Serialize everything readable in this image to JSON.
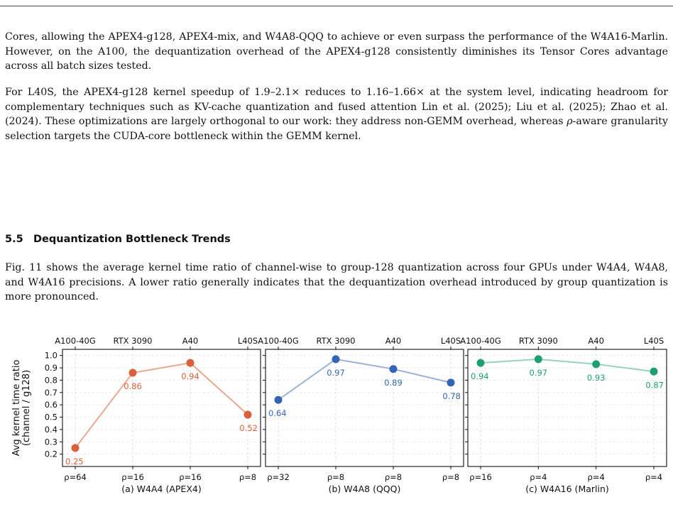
{
  "text": {
    "para1": "Cores, allowing the APEX4-g128, APEX4-mix, and W4A8-QQQ to achieve or even surpass the performance of the W4A16-Marlin. However, on the A100, the dequantization overhead of the APEX4-g128 consistently diminishes its Tensor Cores advantage across all batch sizes tested.",
    "para2_a": "For L40S, the APEX4-g128 kernel speedup of 1.9–2.1× reduces to 1.16–1.66× at the system level, indicating headroom for complementary techniques such as KV-cache quantization and fused attention Lin et al. (2025); Liu et al. (2025); Zhao et al. (2024). These optimizations are largely orthogonal to our work: they address non-GEMM overhead, whereas ",
    "para2_rho": "ρ",
    "para2_b": "-aware granularity selection targets the CUDA-core bottleneck within the GEMM kernel.",
    "section_number": "5.5",
    "section_title": "Dequantization Bottleneck Trends",
    "para3": "Fig. 11 shows the average kernel time ratio of channel-wise to group-128 quantization across four GPUs under W4A4, W4A8, and W4A16 precisions. A lower ratio generally indicates that the dequantization overhead introduced by group quantization is more pronounced."
  },
  "chart_data": [
    {
      "type": "line",
      "xlabel": "(a) W4A4 (APEX4)",
      "ylabel": "Avg kernel time ratio (channel / g128)",
      "top_categories": [
        "A100-40G",
        "RTX 3090",
        "A40",
        "L40S"
      ],
      "categories": [
        "ρ=64",
        "ρ=16",
        "ρ=16",
        "ρ=8"
      ],
      "values": [
        0.25,
        0.86,
        0.94,
        0.52
      ],
      "labels": [
        "0.25",
        "0.86",
        "0.94",
        "0.52"
      ],
      "color": "#d9603b",
      "line_color": "#eaa890",
      "ylim": [
        0.1,
        1.05
      ],
      "yticks": [
        0.2,
        0.3,
        0.4,
        0.5,
        0.6,
        0.7,
        0.8,
        0.9,
        1.0
      ],
      "grid": true
    },
    {
      "type": "line",
      "xlabel": "(b) W4A8 (QQQ)",
      "top_categories": [
        "A100-40G",
        "RTX 3090",
        "A40",
        "L40S"
      ],
      "categories": [
        "ρ=32",
        "ρ=8",
        "ρ=8",
        "ρ=8"
      ],
      "values": [
        0.64,
        0.97,
        0.89,
        0.78
      ],
      "labels": [
        "0.64",
        "0.97",
        "0.89",
        "0.78"
      ],
      "color": "#3465b0",
      "line_color": "#9ab4d8",
      "ylim": [
        0.1,
        1.05
      ],
      "grid": true
    },
    {
      "type": "line",
      "xlabel": "(c) W4A16 (Marlin)",
      "top_categories": [
        "A100-40G",
        "RTX 3090",
        "A40",
        "L40S"
      ],
      "categories": [
        "ρ=16",
        "ρ=4",
        "ρ=4",
        "ρ=4"
      ],
      "values": [
        0.94,
        0.97,
        0.93,
        0.87
      ],
      "labels": [
        "0.94",
        "0.97",
        "0.93",
        "0.87"
      ],
      "color": "#1f9e74",
      "line_color": "#95d4bd",
      "ylim": [
        0.1,
        1.05
      ],
      "grid": true
    }
  ]
}
